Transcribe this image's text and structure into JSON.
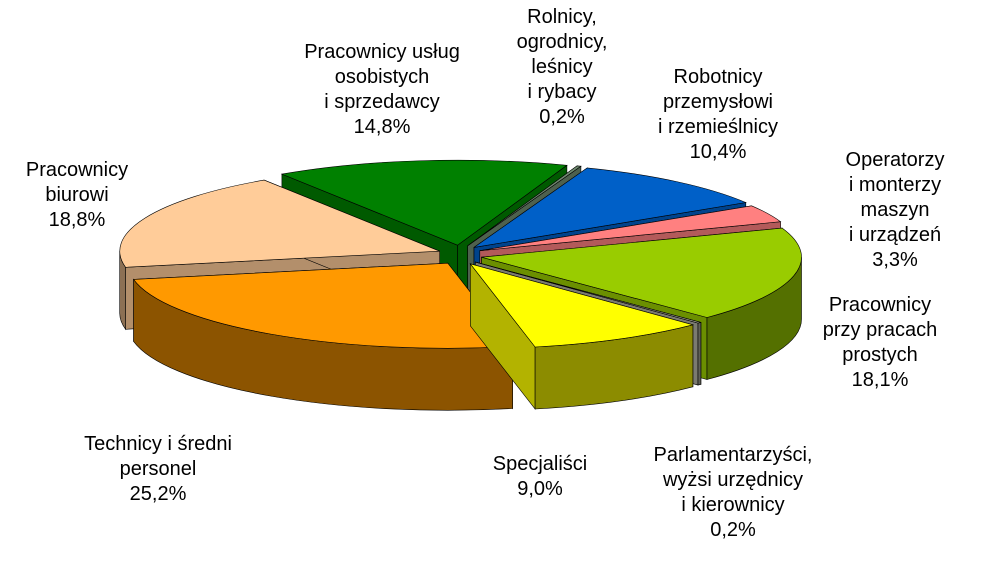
{
  "chart_data": {
    "type": "pie",
    "categories": [
      "Rolnicy,\nogrodnicy,\nleśnicy\ni rybacy",
      "Robotnicy\nprzemysłowi\ni rzemieślnicy",
      "Operatorzy\ni monterzy maszyn\ni urządzeń",
      "Pracownicy\nprzy pracach\nprostych",
      "Parlamentarzyści,\nwyżsi urzędnicy\ni kierownicy",
      "Specjaliści",
      "Technicy i średni\npersonel",
      "Pracownicy\nbiurowi",
      "Pracownicy usług\nosobistych\ni sprzedawcy"
    ],
    "values": [
      0.2,
      10.4,
      3.3,
      18.1,
      0.2,
      9.0,
      25.2,
      18.8,
      14.8
    ],
    "value_labels": [
      "0,2%",
      "10,4%",
      "3,3%",
      "18,1%",
      "0,2%",
      "9,0%",
      "25,2%",
      "18,8%",
      "14,8%"
    ],
    "colors": [
      "#708a70",
      "#0060c8",
      "#ff8080",
      "#99cc00",
      "#b0b0a0",
      "#ffff00",
      "#ff9900",
      "#ffcc99",
      "#008000"
    ]
  }
}
